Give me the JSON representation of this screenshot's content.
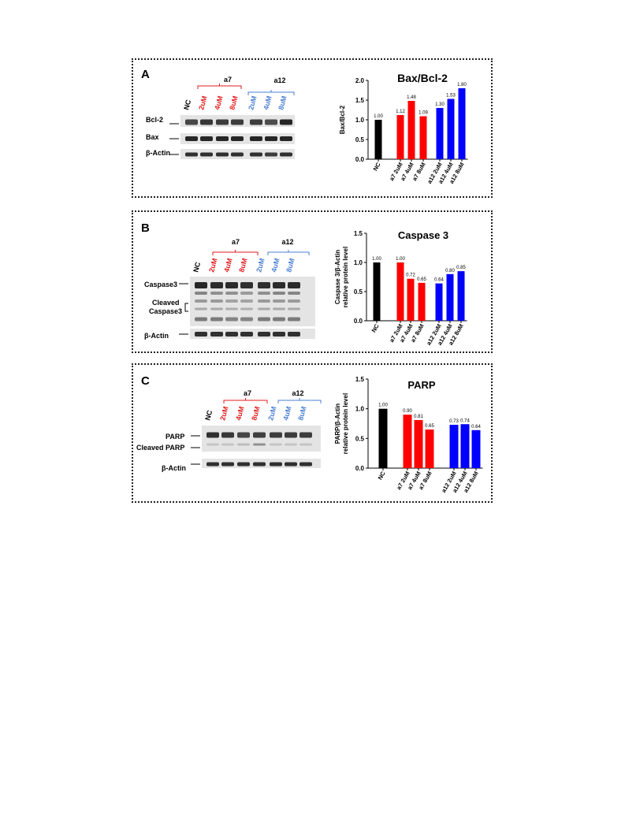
{
  "panels": [
    {
      "id": "a",
      "letter": "A",
      "blot": {
        "group_labels": [
          "a7",
          "a12"
        ],
        "lanes": [
          "NC",
          "2uM",
          "4uM",
          "8uM",
          "2uM",
          "4uM",
          "8uM"
        ],
        "lane_colors": [
          "#000000",
          "#e31a1c",
          "#e31a1c",
          "#e31a1c",
          "#4a7fd4",
          "#4a7fd4",
          "#4a7fd4"
        ],
        "rows": [
          "Bcl-2",
          "Bax",
          "β-Actin"
        ]
      },
      "chart_data": {
        "type": "bar",
        "title": "Bax/Bcl-2",
        "ylabel": "Bax/Bcl-2",
        "ylabel_line2": "",
        "categories": [
          "NC",
          "a7 2uM",
          "a7 4uM",
          "a7 8uM",
          "a12 2uM",
          "a12 4uM",
          "a12 8uM"
        ],
        "values": [
          1.0,
          1.12,
          1.48,
          1.09,
          1.3,
          1.53,
          1.8
        ],
        "value_labels": [
          "1.00",
          "1.12",
          "1.48",
          "1.09",
          "1.30",
          "1.53",
          "1.80"
        ],
        "colors": [
          "#000000",
          "#ff0000",
          "#ff0000",
          "#ff0000",
          "#0000ff",
          "#0000ff",
          "#0000ff"
        ],
        "ylim": [
          0,
          2.0
        ],
        "yticks": [
          "0.0",
          "0.5",
          "1.0",
          "1.5",
          "2.0"
        ],
        "grid": false
      }
    },
    {
      "id": "b",
      "letter": "B",
      "blot": {
        "group_labels": [
          "a7",
          "a12"
        ],
        "lanes": [
          "NC",
          "2uM",
          "4uM",
          "8uM",
          "2uM",
          "4uM",
          "8uM"
        ],
        "lane_colors": [
          "#000000",
          "#e31a1c",
          "#e31a1c",
          "#e31a1c",
          "#4a7fd4",
          "#4a7fd4",
          "#4a7fd4"
        ],
        "rows": [
          "Caspase3",
          "Cleaved",
          "Caspase3",
          "β-Actin"
        ]
      },
      "chart_data": {
        "type": "bar",
        "title": "Caspase 3",
        "ylabel": "Caspase 3/β-Actin",
        "ylabel_line2": "relative protein level",
        "categories": [
          "NC",
          "a7 2uM",
          "a7 4uM",
          "a7 8uM",
          "a12 2uM",
          "a12 4uM",
          "a12 8uM"
        ],
        "values": [
          1.0,
          1.0,
          0.72,
          0.65,
          0.64,
          0.8,
          0.85
        ],
        "value_labels": [
          "1.00",
          "1.00",
          "0.72",
          "0.65",
          "0.64",
          "0.80",
          "0.85"
        ],
        "colors": [
          "#000000",
          "#ff0000",
          "#ff0000",
          "#ff0000",
          "#0000ff",
          "#0000ff",
          "#0000ff"
        ],
        "ylim": [
          0,
          1.5
        ],
        "yticks": [
          "0.0",
          "0.5",
          "1.0",
          "1.5"
        ],
        "grid": false
      }
    },
    {
      "id": "c",
      "letter": "C",
      "blot": {
        "group_labels": [
          "a7",
          "a12"
        ],
        "lanes": [
          "NC",
          "2uM",
          "4uM",
          "8uM",
          "2uM",
          "4uM",
          "8uM"
        ],
        "lane_colors": [
          "#000000",
          "#e31a1c",
          "#e31a1c",
          "#e31a1c",
          "#4a7fd4",
          "#4a7fd4",
          "#4a7fd4"
        ],
        "rows": [
          "PARP",
          "Cleaved PARP",
          "β-Actin"
        ]
      },
      "chart_data": {
        "type": "bar",
        "title": "PARP",
        "ylabel": "PARP/β-Actin",
        "ylabel_line2": "relative protein level",
        "categories": [
          "NC",
          "a7 2uM",
          "a7 4uM",
          "a7 8uM",
          "a12 2uM",
          "a12 4uM",
          "a12 8uM"
        ],
        "values": [
          1.0,
          0.9,
          0.81,
          0.65,
          0.73,
          0.74,
          0.64
        ],
        "value_labels": [
          "1.00",
          "0.90",
          "0.81",
          "0.65",
          "0.73",
          "0.74",
          "0.64"
        ],
        "colors": [
          "#000000",
          "#ff0000",
          "#ff0000",
          "#ff0000",
          "#0000ff",
          "#0000ff",
          "#0000ff"
        ],
        "ylim": [
          0,
          1.5
        ],
        "yticks": [
          "0.0",
          "0.5",
          "1.0",
          "1.5"
        ],
        "grid": false
      }
    }
  ]
}
